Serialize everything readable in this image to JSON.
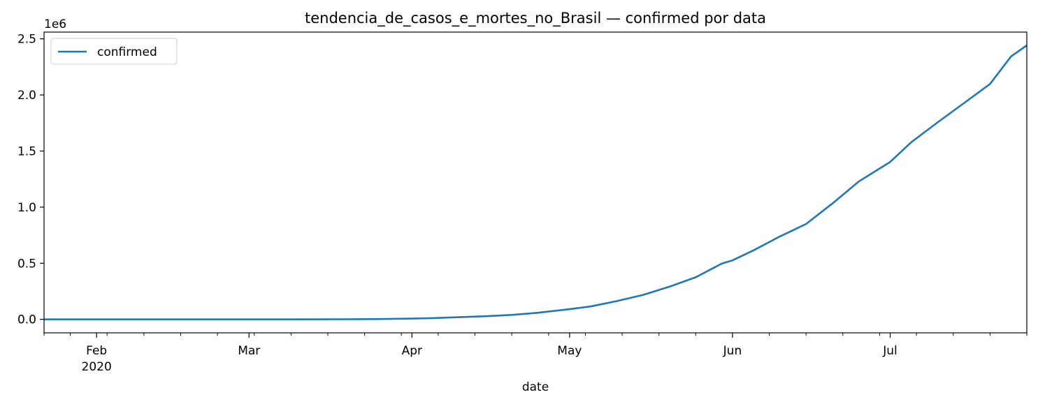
{
  "chart_data": {
    "type": "line",
    "title": "tendencia_de_casos_e_mortes_no_Brasil — confirmed por data",
    "xlabel": "date",
    "ylabel": "",
    "y_offset_label": "1e6",
    "x_range": [
      "2020-01-22",
      "2020-07-27"
    ],
    "ylim": [
      -0.12,
      2.56
    ],
    "y_ticks": [
      0.0,
      0.5,
      1.0,
      1.5,
      2.0,
      2.5
    ],
    "y_tick_labels": [
      "0.0",
      "0.5",
      "1.0",
      "1.5",
      "2.0",
      "2.5"
    ],
    "x_major_ticks": [
      {
        "date": "2020-02-01",
        "label": "Feb",
        "sublabel": "2020"
      },
      {
        "date": "2020-03-01",
        "label": "Mar",
        "sublabel": ""
      },
      {
        "date": "2020-04-01",
        "label": "Apr",
        "sublabel": ""
      },
      {
        "date": "2020-05-01",
        "label": "May",
        "sublabel": ""
      },
      {
        "date": "2020-06-01",
        "label": "Jun",
        "sublabel": ""
      },
      {
        "date": "2020-07-01",
        "label": "Jul",
        "sublabel": ""
      }
    ],
    "x_minor_ticks": [
      "2020-01-22",
      "2020-01-27",
      "2020-02-03",
      "2020-02-10",
      "2020-02-17",
      "2020-02-24",
      "2020-03-02",
      "2020-03-09",
      "2020-03-16",
      "2020-03-23",
      "2020-03-30",
      "2020-04-06",
      "2020-04-13",
      "2020-04-20",
      "2020-04-27",
      "2020-05-04",
      "2020-05-11",
      "2020-05-18",
      "2020-05-25",
      "2020-06-01",
      "2020-06-08",
      "2020-06-15",
      "2020-06-22",
      "2020-06-29",
      "2020-07-06",
      "2020-07-13",
      "2020-07-20",
      "2020-07-27"
    ],
    "legend": {
      "placement": "upper-left"
    },
    "grid": false,
    "series": [
      {
        "name": "confirmed",
        "color": "#1f77b4",
        "x": [
          "2020-01-22",
          "2020-02-15",
          "2020-03-10",
          "2020-03-20",
          "2020-03-25",
          "2020-04-01",
          "2020-04-05",
          "2020-04-10",
          "2020-04-15",
          "2020-04-20",
          "2020-04-25",
          "2020-05-01",
          "2020-05-05",
          "2020-05-10",
          "2020-05-15",
          "2020-05-20",
          "2020-05-25",
          "2020-05-30",
          "2020-06-01",
          "2020-06-05",
          "2020-06-10",
          "2020-06-15",
          "2020-06-20",
          "2020-06-25",
          "2020-07-01",
          "2020-07-05",
          "2020-07-10",
          "2020-07-15",
          "2020-07-20",
          "2020-07-24",
          "2020-07-27"
        ],
        "values": [
          0.0,
          0.0,
          0.0,
          0.0011,
          0.0024,
          0.0067,
          0.011,
          0.019,
          0.028,
          0.04,
          0.059,
          0.091,
          0.115,
          0.163,
          0.218,
          0.291,
          0.375,
          0.498,
          0.526,
          0.615,
          0.739,
          0.85,
          1.032,
          1.228,
          1.403,
          1.578,
          1.755,
          1.926,
          2.098,
          2.343,
          2.442
        ]
      }
    ]
  }
}
